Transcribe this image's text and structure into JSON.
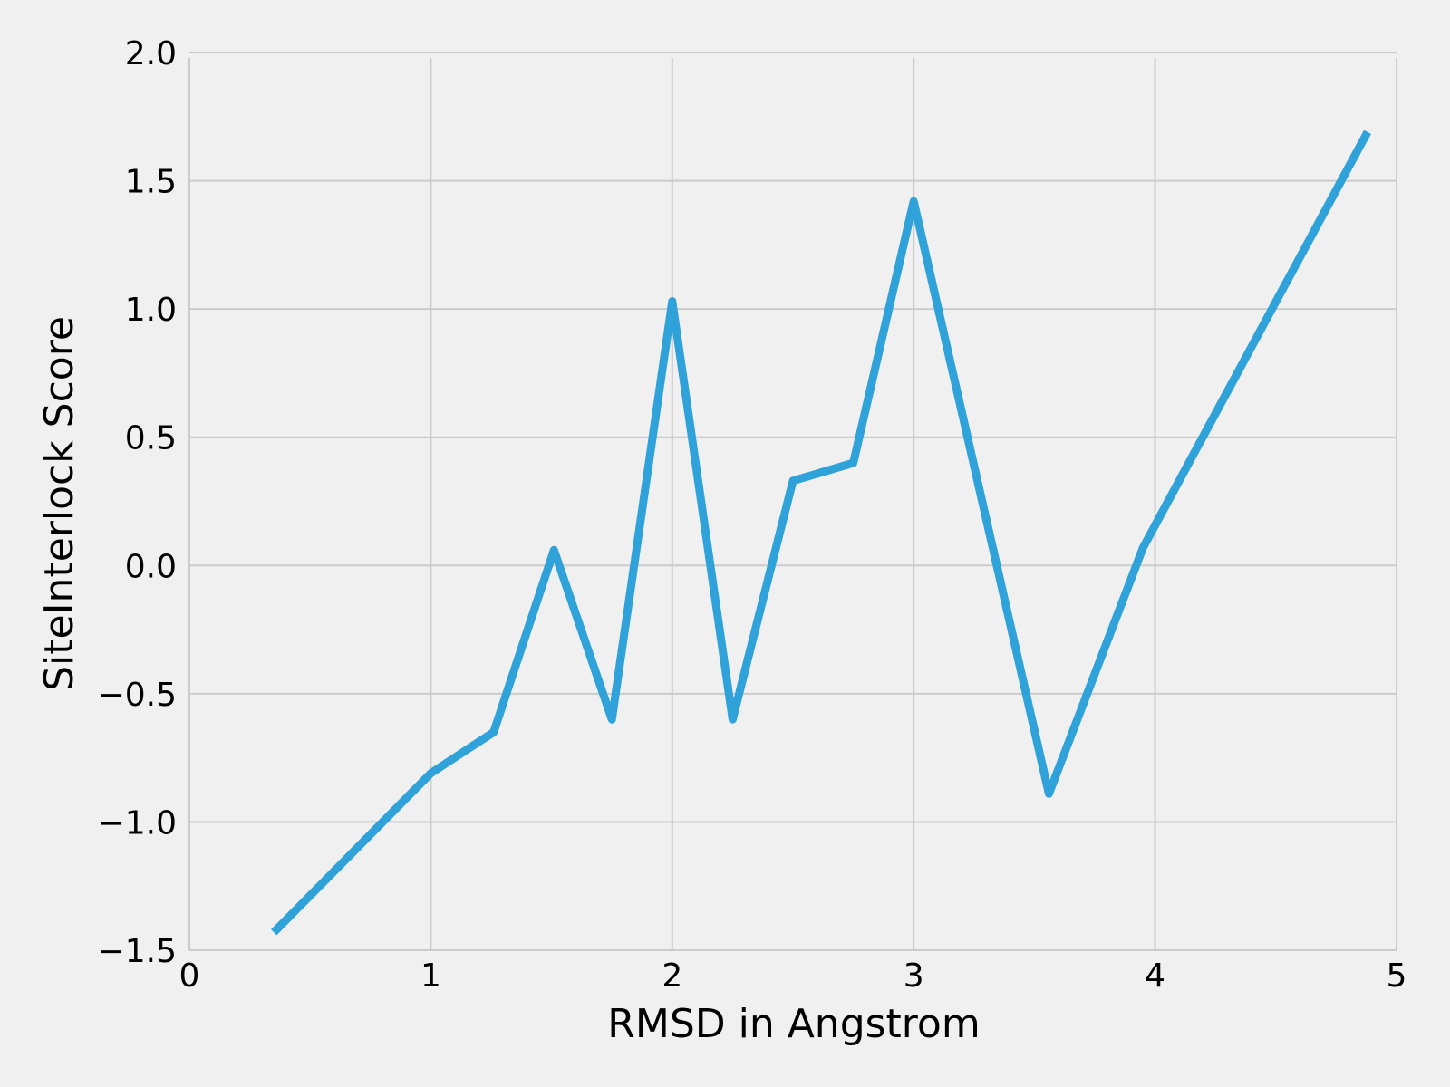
{
  "chart_data": {
    "type": "line",
    "title": "",
    "xlabel": "RMSD in Angstrom",
    "ylabel": "SiteInterlock Score",
    "xlim": [
      0,
      5
    ],
    "ylim": [
      -1.5,
      2.0
    ],
    "x_ticks": [
      "0",
      "1",
      "2",
      "3",
      "4",
      "5"
    ],
    "y_ticks": [
      "−1.5",
      "−1.0",
      "−0.5",
      "0.0",
      "0.5",
      "1.0",
      "1.5",
      "2.0"
    ],
    "grid": true,
    "colors": {
      "background": "#f0f0f0",
      "grid": "#cbcbcb",
      "line": "#30a2da"
    },
    "series": [
      {
        "x": [
          0.35,
          1.0,
          1.26,
          1.51,
          1.75,
          2.0,
          2.25,
          2.5,
          2.75,
          3.0,
          3.56,
          3.95,
          4.88
        ],
        "y": [
          -1.43,
          -0.81,
          -0.65,
          0.06,
          -0.6,
          1.03,
          -0.6,
          0.33,
          0.4,
          1.42,
          -0.89,
          0.07,
          1.69
        ]
      }
    ]
  }
}
